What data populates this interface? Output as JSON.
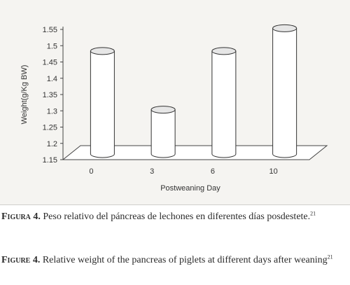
{
  "chart_data": {
    "type": "bar",
    "style": "3d-cylinder",
    "categories": [
      "0",
      "3",
      "6",
      "10"
    ],
    "values": [
      1.475,
      1.295,
      1.475,
      1.545
    ],
    "title": "",
    "xlabel": "Postweaning Day",
    "ylabel": "Weight(g/Kg BW)",
    "ylim": [
      1.15,
      1.55
    ],
    "yticks": [
      "1.15",
      "1.2",
      "1.25",
      "1.3",
      "1.35",
      "1.4",
      "1.45",
      "1.5",
      "1.55"
    ],
    "grid": false,
    "legend": "none",
    "colors": {
      "bar_fill": "#ffffff",
      "bar_stroke": "#333333",
      "background": "#f5f4f1"
    }
  },
  "captions": {
    "es": {
      "label": "Figura 4.",
      "text": " Peso relativo del páncreas de lechones en diferentes días posdestete.",
      "ref": "21"
    },
    "en": {
      "label": "Figure 4.",
      "text": " Relative weight of the pancreas of piglets at different days after weaning",
      "ref": "21"
    }
  }
}
